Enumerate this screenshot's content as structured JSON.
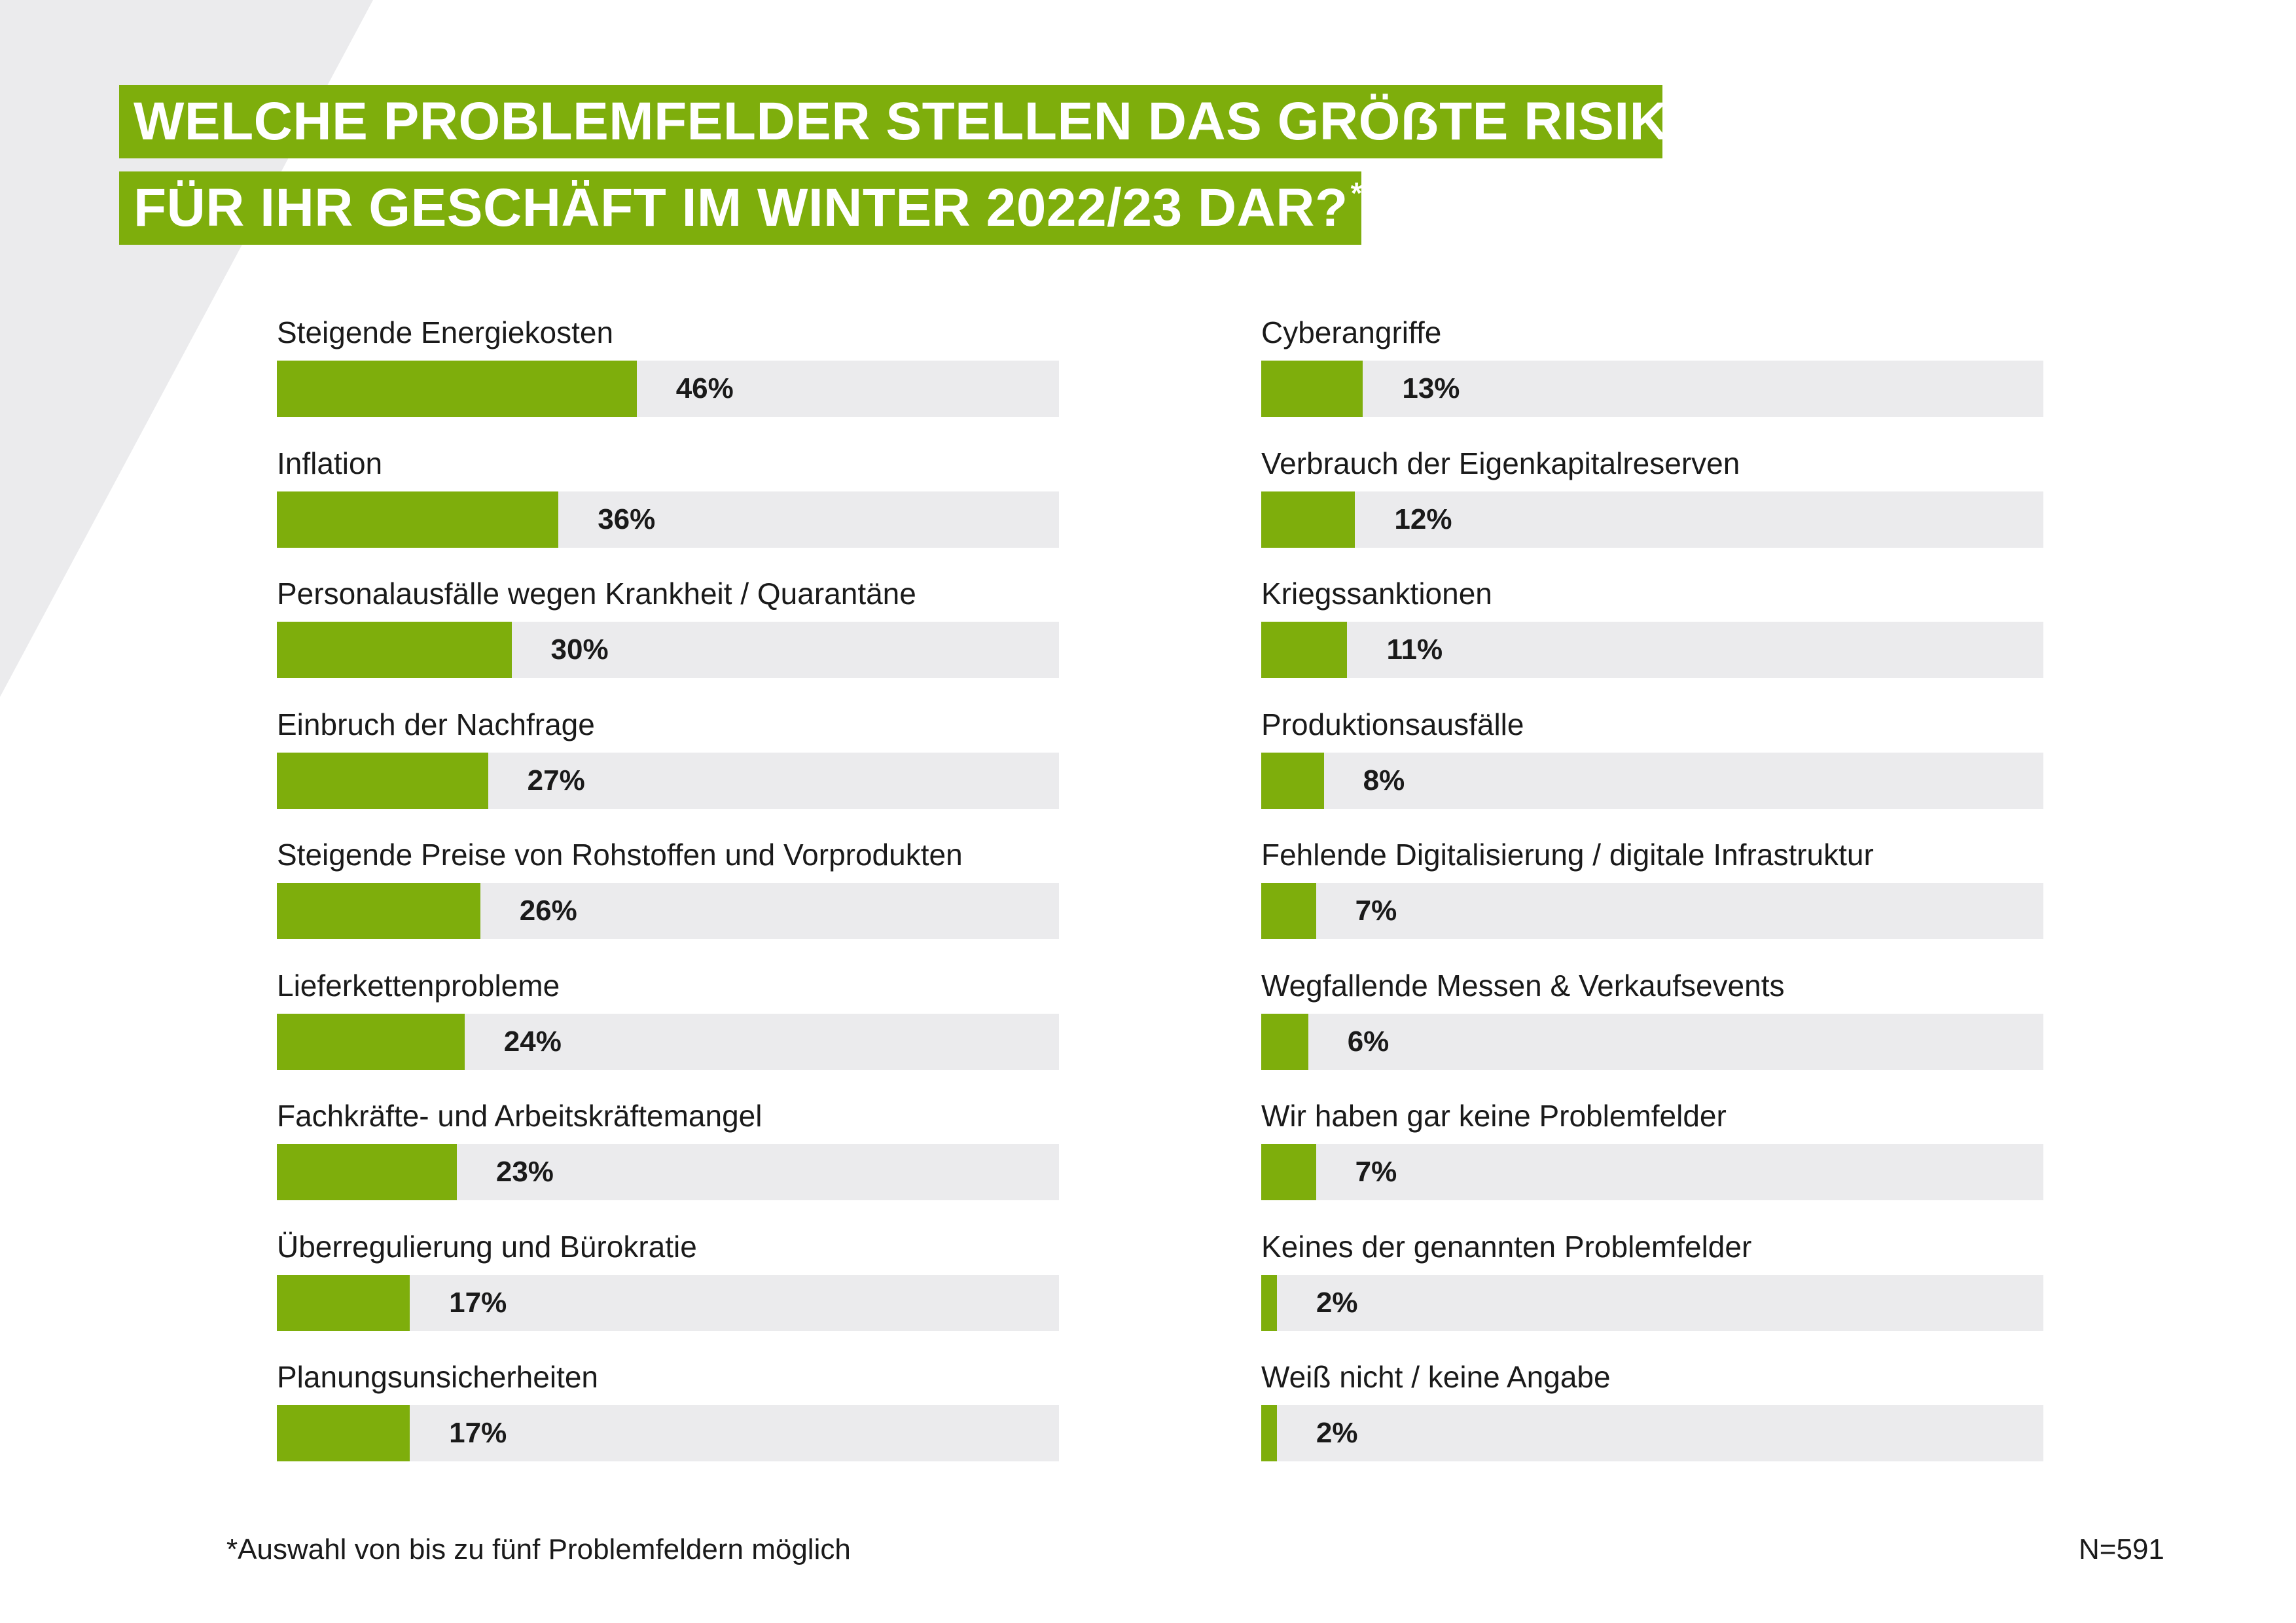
{
  "title": {
    "line1": "WELCHE PROBLEMFELDER STELLEN DAS GRÖẞTE RISIKO",
    "line2": "FÜR IHR GESCHÄFT IM WINTER 2022/23 DAR?",
    "asterisk": "*"
  },
  "footnote": "*Auswahl von bis zu fünf Problemfeldern möglich",
  "sample_size": "N=591",
  "colors": {
    "accent": "#7eae0c",
    "track": "#ebebed",
    "background_shape": "#ebebed"
  },
  "chart_data": {
    "type": "bar",
    "orientation": "horizontal",
    "xlim": [
      0,
      100
    ],
    "unit": "%",
    "grid": false,
    "columns": [
      {
        "items": [
          {
            "label": "Steigende Energiekosten",
            "value": 46,
            "value_label": "46%"
          },
          {
            "label": "Inflation",
            "value": 36,
            "value_label": "36%"
          },
          {
            "label": "Personalausfälle wegen Krankheit / Quarantäne",
            "value": 30,
            "value_label": "30%"
          },
          {
            "label": "Einbruch der Nachfrage",
            "value": 27,
            "value_label": "27%"
          },
          {
            "label": "Steigende Preise von Rohstoffen und Vorprodukten",
            "value": 26,
            "value_label": "26%"
          },
          {
            "label": "Lieferkettenprobleme",
            "value": 24,
            "value_label": "24%"
          },
          {
            "label": "Fachkräfte- und Arbeitskräftemangel",
            "value": 23,
            "value_label": "23%"
          },
          {
            "label": "Überregulierung und Bürokratie",
            "value": 17,
            "value_label": "17%"
          },
          {
            "label": "Planungsunsicherheiten",
            "value": 17,
            "value_label": "17%"
          }
        ]
      },
      {
        "items": [
          {
            "label": "Cyberangriffe",
            "value": 13,
            "value_label": "13%"
          },
          {
            "label": "Verbrauch der Eigenkapitalreserven",
            "value": 12,
            "value_label": "12%"
          },
          {
            "label": "Kriegssanktionen",
            "value": 11,
            "value_label": "11%"
          },
          {
            "label": "Produktionsausfälle",
            "value": 8,
            "value_label": "8%"
          },
          {
            "label": "Fehlende Digitalisierung / digitale Infrastruktur",
            "value": 7,
            "value_label": "7%"
          },
          {
            "label": "Wegfallende Messen & Verkaufsevents",
            "value": 6,
            "value_label": "6%"
          },
          {
            "label": "Wir haben gar keine Problemfelder",
            "value": 7,
            "value_label": "7%"
          },
          {
            "label": "Keines der genannten Problemfelder",
            "value": 2,
            "value_label": "2%"
          },
          {
            "label": "Weiß nicht / keine Angabe",
            "value": 2,
            "value_label": "2%"
          }
        ]
      }
    ]
  }
}
